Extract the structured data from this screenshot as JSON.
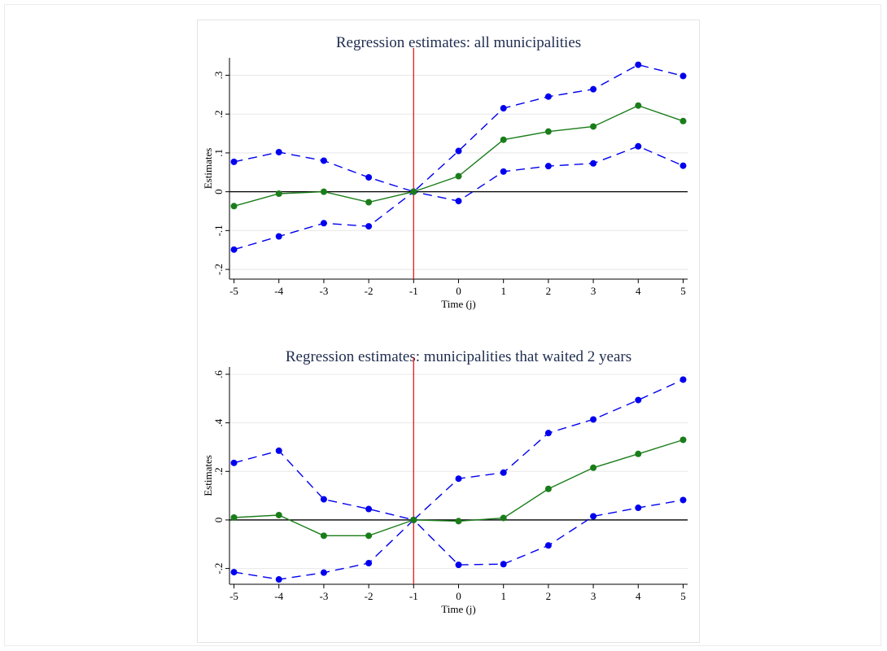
{
  "chart_data": [
    {
      "type": "line",
      "title": "Regression estimates: all municipalities",
      "xlabel": "Time (j)",
      "ylabel": "Estimates",
      "x": [
        -5,
        -4,
        -3,
        -2,
        -1,
        0,
        1,
        2,
        3,
        4,
        5
      ],
      "x_tick_labels": [
        "-5",
        "-4",
        "-3",
        "-2",
        "-1",
        "0",
        "1",
        "2",
        "3",
        "4",
        "5"
      ],
      "y_ticks": [
        -0.2,
        -0.1,
        0,
        0.1,
        0.2,
        0.3
      ],
      "y_tick_labels": [
        "-.2",
        "-.1",
        "0",
        ".1",
        ".2",
        ".3"
      ],
      "ylim": [
        -0.225,
        0.345
      ],
      "xlim": [
        -5.1,
        5.1
      ],
      "grid": true,
      "reference_lines": {
        "vertical_x": -1,
        "horizontal_y": 0
      },
      "series": [
        {
          "role": "estimate",
          "color": "#1a7d1a",
          "style": "solid",
          "values": [
            -0.037,
            -0.005,
            0.0,
            -0.027,
            0.0,
            0.04,
            0.134,
            0.155,
            0.168,
            0.222,
            0.182
          ]
        },
        {
          "role": "upper",
          "color": "#0000ee",
          "style": "dashed",
          "values": [
            0.077,
            0.102,
            0.08,
            0.037,
            0.0,
            0.105,
            0.215,
            0.245,
            0.264,
            0.327,
            0.298
          ]
        },
        {
          "role": "lower",
          "color": "#0000ee",
          "style": "dashed",
          "values": [
            -0.149,
            -0.115,
            -0.081,
            -0.089,
            0.0,
            -0.024,
            0.052,
            0.066,
            0.073,
            0.117,
            0.067
          ]
        }
      ]
    },
    {
      "type": "line",
      "title": "Regression estimates: municipalities that waited 2 years",
      "xlabel": "Time (j)",
      "ylabel": "Estimates",
      "x": [
        -5,
        -4,
        -3,
        -2,
        -1,
        0,
        1,
        2,
        3,
        4,
        5
      ],
      "x_tick_labels": [
        "-5",
        "-4",
        "-3",
        "-2",
        "-1",
        "0",
        "1",
        "2",
        "3",
        "4",
        "5"
      ],
      "y_ticks": [
        -0.2,
        0,
        0.2,
        0.4,
        0.6
      ],
      "y_tick_labels": [
        "-.2",
        "0",
        ".2",
        ".4",
        ".6"
      ],
      "ylim": [
        -0.265,
        0.63
      ],
      "xlim": [
        -5.1,
        5.1
      ],
      "grid": true,
      "reference_lines": {
        "vertical_x": -1,
        "horizontal_y": 0
      },
      "series": [
        {
          "role": "estimate",
          "color": "#1a7d1a",
          "style": "solid",
          "values": [
            0.01,
            0.02,
            -0.065,
            -0.065,
            0.0,
            -0.005,
            0.008,
            0.128,
            0.215,
            0.272,
            0.33
          ]
        },
        {
          "role": "upper",
          "color": "#0000ee",
          "style": "dashed",
          "values": [
            0.235,
            0.285,
            0.085,
            0.045,
            0.0,
            0.17,
            0.195,
            0.358,
            0.414,
            0.494,
            0.578
          ]
        },
        {
          "role": "lower",
          "color": "#0000ee",
          "style": "dashed",
          "values": [
            -0.215,
            -0.245,
            -0.217,
            -0.178,
            0.0,
            -0.185,
            -0.182,
            -0.105,
            0.015,
            0.05,
            0.082
          ]
        }
      ]
    }
  ],
  "colors": {
    "title": "#1f2d4f",
    "grid": "#e8e8e8",
    "vertical_reference": "#e41a1c",
    "horizontal_reference": "#000000",
    "estimate": "#1a7d1a",
    "confidence_band": "#0000ee"
  }
}
